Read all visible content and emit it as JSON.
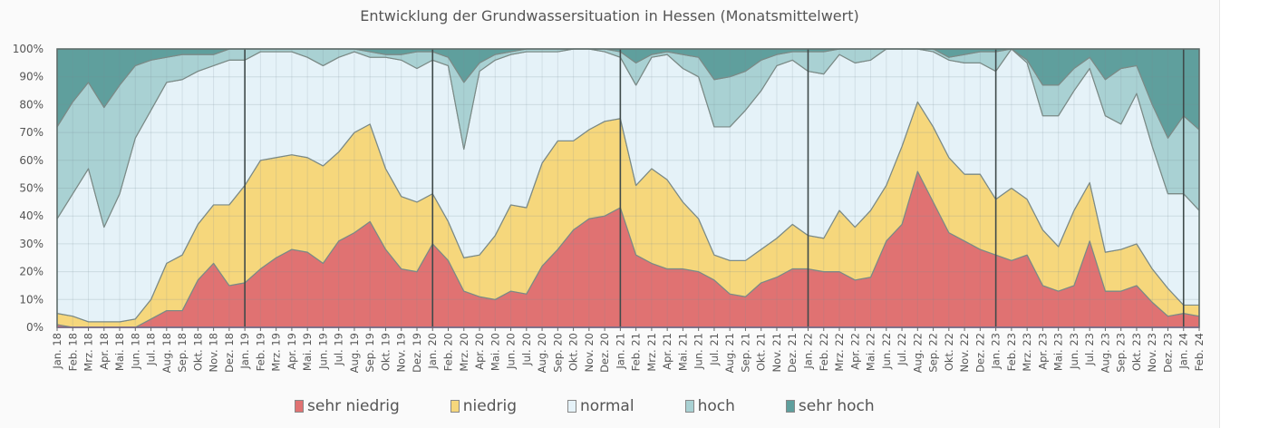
{
  "chart_data": {
    "type": "area",
    "stacked": "percent",
    "title": "Entwicklung der Grundwassersituation in Hessen (Monatsmittelwert)",
    "xlabel": "",
    "ylabel": "",
    "ylim": [
      0,
      100
    ],
    "yticks": [
      "0%",
      "10%",
      "20%",
      "30%",
      "40%",
      "50%",
      "60%",
      "70%",
      "80%",
      "90%",
      "100%"
    ],
    "grid": true,
    "legend_position": "bottom",
    "categories": [
      "Jan. 18",
      "Feb. 18",
      "Mrz. 18",
      "Apr. 18",
      "Mai. 18",
      "Jun. 18",
      "Jul. 18",
      "Aug. 18",
      "Sep. 18",
      "Okt. 18",
      "Nov. 18",
      "Dez. 18",
      "Jan. 19",
      "Feb. 19",
      "Mrz. 19",
      "Apr. 19",
      "Mai. 19",
      "Jun. 19",
      "Jul. 19",
      "Aug. 19",
      "Sep. 19",
      "Okt. 19",
      "Nov. 19",
      "Dez. 19",
      "Jan. 20",
      "Feb. 20",
      "Mrz. 20",
      "Apr. 20",
      "Mai. 20",
      "Jun. 20",
      "Jul. 20",
      "Aug. 20",
      "Sep. 20",
      "Okt. 20",
      "Nov. 20",
      "Dez. 20",
      "Jan. 21",
      "Feb. 21",
      "Mrz. 21",
      "Apr. 21",
      "Mai. 21",
      "Jun. 21",
      "Jul. 21",
      "Aug. 21",
      "Sep. 21",
      "Okt. 21",
      "Nov. 21",
      "Dez. 21",
      "Jan. 22",
      "Feb. 22",
      "Mrz. 22",
      "Apr. 22",
      "Mai. 22",
      "Jun. 22",
      "Jul. 22",
      "Aug. 22",
      "Sep. 22",
      "Okt. 22",
      "Nov. 22",
      "Dez. 22",
      "Jan. 23",
      "Feb. 23",
      "Mrz. 23",
      "Apr. 23",
      "Mai. 23",
      "Jun. 23",
      "Jul. 23",
      "Aug. 23",
      "Sep. 23",
      "Okt. 23",
      "Nov. 23",
      "Dez. 23",
      "Jan. 24",
      "Feb. 24"
    ],
    "series": [
      {
        "name": "sehr niedrig",
        "color": "#e07272",
        "values": [
          1,
          0,
          0,
          0,
          0,
          0,
          3,
          6,
          6,
          17,
          23,
          15,
          16,
          21,
          25,
          28,
          27,
          23,
          31,
          34,
          38,
          28,
          21,
          20,
          30,
          24,
          13,
          11,
          10,
          13,
          12,
          22,
          28,
          35,
          39,
          40,
          43,
          26,
          23,
          21,
          21,
          20,
          17,
          12,
          11,
          16,
          18,
          21,
          21,
          20,
          20,
          17,
          18,
          31,
          37,
          56,
          45,
          34,
          31,
          28,
          26,
          24,
          26,
          15,
          13,
          15,
          31,
          13,
          13,
          15,
          9,
          4,
          5,
          4
        ]
      },
      {
        "name": "niedrig",
        "color": "#f6d77c",
        "values": [
          4,
          4,
          2,
          2,
          2,
          3,
          7,
          17,
          20,
          20,
          21,
          29,
          35,
          39,
          36,
          34,
          34,
          35,
          32,
          36,
          35,
          29,
          26,
          25,
          18,
          14,
          12,
          15,
          23,
          31,
          31,
          37,
          39,
          32,
          32,
          34,
          32,
          25,
          34,
          32,
          24,
          19,
          9,
          12,
          13,
          12,
          14,
          16,
          12,
          12,
          22,
          19,
          24,
          20,
          28,
          25,
          27,
          27,
          24,
          27,
          20,
          26,
          20,
          20,
          16,
          27,
          21,
          14,
          15,
          15,
          12,
          10,
          3,
          4
        ]
      },
      {
        "name": "normal",
        "color": "#e5f2f8",
        "values": [
          34,
          44,
          55,
          34,
          46,
          65,
          68,
          65,
          63,
          55,
          50,
          52,
          45,
          39,
          38,
          37,
          36,
          36,
          34,
          29,
          24,
          40,
          49,
          48,
          48,
          56,
          39,
          66,
          63,
          54,
          56,
          40,
          32,
          33,
          29,
          25,
          22,
          36,
          40,
          45,
          48,
          51,
          46,
          48,
          54,
          57,
          62,
          59,
          59,
          59,
          56,
          59,
          54,
          49,
          35,
          19,
          27,
          35,
          40,
          40,
          46,
          50,
          49,
          41,
          47,
          43,
          41,
          49,
          45,
          54,
          44,
          34,
          40,
          34
        ]
      },
      {
        "name": "hoch",
        "color": "#a9d1d3",
        "values": [
          33,
          33,
          31,
          43,
          39,
          26,
          18,
          9,
          9,
          6,
          4,
          4,
          4,
          1,
          1,
          1,
          3,
          6,
          3,
          1,
          2,
          1,
          2,
          6,
          3,
          3,
          24,
          3,
          2,
          1,
          1,
          1,
          1,
          0,
          0,
          1,
          2,
          8,
          1,
          1,
          5,
          7,
          17,
          18,
          14,
          11,
          4,
          3,
          7,
          8,
          2,
          5,
          4,
          0,
          0,
          0,
          1,
          1,
          3,
          4,
          7,
          0,
          1,
          11,
          11,
          8,
          4,
          13,
          20,
          10,
          15,
          20,
          28,
          29
        ]
      },
      {
        "name": "sehr hoch",
        "color": "#5f9f9d",
        "values": [
          28,
          19,
          12,
          21,
          13,
          6,
          4,
          3,
          2,
          2,
          2,
          0,
          0,
          0,
          0,
          0,
          0,
          0,
          0,
          0,
          1,
          2,
          2,
          1,
          1,
          3,
          12,
          5,
          2,
          1,
          0,
          0,
          0,
          0,
          0,
          0,
          1,
          5,
          2,
          1,
          2,
          3,
          11,
          10,
          8,
          4,
          2,
          1,
          1,
          1,
          0,
          0,
          0,
          0,
          0,
          0,
          0,
          3,
          2,
          1,
          1,
          0,
          4,
          13,
          13,
          7,
          3,
          11,
          7,
          6,
          20,
          32,
          24,
          29
        ]
      }
    ]
  }
}
